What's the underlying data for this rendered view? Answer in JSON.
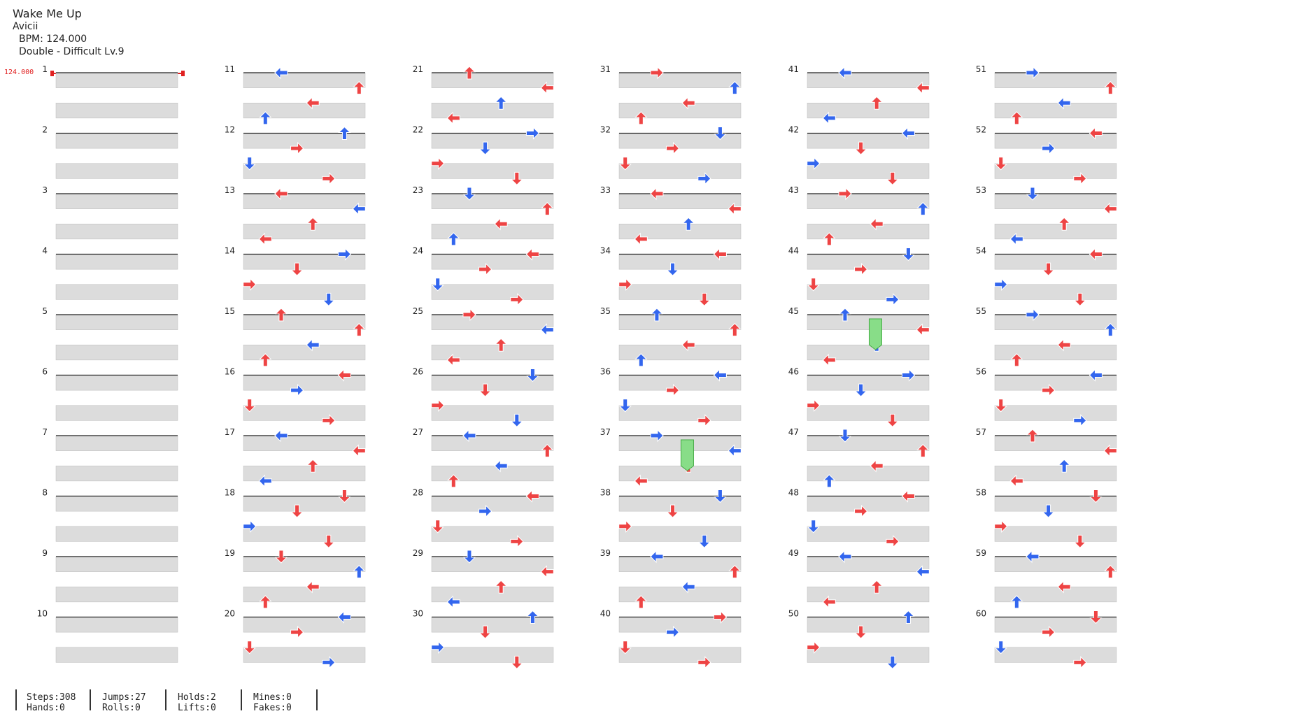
{
  "song": {
    "title": "Wake Me Up",
    "artist": "Avicii",
    "bpm_label": "BPM: 124.000",
    "difficulty_label": "Double - Difficult  Lv.9",
    "bpm_marker": "124.000"
  },
  "measures": [
    "1",
    "2",
    "3",
    "4",
    "5",
    "6",
    "7",
    "8",
    "9",
    "10",
    "11",
    "12",
    "13",
    "14",
    "15",
    "16",
    "17",
    "18",
    "19",
    "20",
    "21",
    "22",
    "23",
    "24",
    "25",
    "26",
    "27",
    "28",
    "29",
    "30",
    "31",
    "32",
    "33",
    "34",
    "35",
    "36",
    "37",
    "38",
    "39",
    "40",
    "41",
    "42",
    "43",
    "44",
    "45",
    "46",
    "47",
    "48",
    "49",
    "50",
    "51",
    "52",
    "53",
    "54",
    "55",
    "56",
    "57",
    "58",
    "59",
    "60"
  ],
  "colors": {
    "red_arrow": "#ee4444",
    "blue_arrow": "#3366ee",
    "hold": "#88dd88",
    "lane_fill": "#dcdcdc",
    "bpm": "#e02020"
  },
  "notes": [
    [
      10,
      0,
      "L",
      0
    ],
    [
      11,
      0,
      "U",
      1
    ],
    [
      12,
      0,
      "L",
      0
    ],
    [
      13,
      0,
      "R",
      0
    ],
    [
      14,
      0,
      "U",
      0
    ],
    [
      15,
      0,
      "L",
      0
    ],
    [
      16,
      0,
      "L",
      0
    ],
    [
      17,
      0,
      "D",
      0
    ],
    [
      18,
      0,
      "D",
      0
    ],
    [
      19,
      0,
      "L",
      0
    ],
    [
      20,
      0,
      "U",
      0
    ],
    [
      21,
      0,
      "R",
      1
    ],
    [
      22,
      0,
      "D",
      0
    ],
    [
      23,
      0,
      "L",
      0
    ],
    [
      24,
      0,
      "R",
      0
    ],
    [
      25,
      0,
      "D",
      1
    ],
    [
      26,
      0,
      "L",
      1
    ],
    [
      27,
      0,
      "L",
      0
    ],
    [
      28,
      0,
      "D",
      0
    ],
    [
      29,
      0,
      "U",
      1
    ],
    [
      30,
      0,
      "R",
      0
    ],
    [
      31,
      0,
      "D",
      1
    ],
    [
      32,
      0,
      "L",
      0
    ],
    [
      33,
      0,
      "L",
      0
    ],
    [
      34,
      0,
      "U",
      1
    ],
    [
      35,
      0,
      "L",
      1
    ],
    [
      36,
      0,
      "R",
      1
    ],
    [
      37,
      0,
      "D",
      0
    ],
    [
      38,
      0,
      "L",
      1
    ],
    [
      39,
      0,
      "R",
      0
    ],
    [
      40,
      0,
      "L",
      0
    ],
    [
      41,
      0,
      "L",
      1
    ],
    [
      42,
      0,
      "R",
      0
    ],
    [
      43,
      0,
      "D",
      0
    ],
    [
      44,
      0,
      "U",
      1
    ],
    [
      45,
      0,
      "R",
      1
    ],
    [
      46,
      0,
      "D",
      0
    ],
    [
      47,
      0,
      "L",
      0
    ],
    [
      48,
      0,
      "L",
      1
    ],
    [
      49,
      0,
      "U",
      0
    ],
    [
      50,
      0,
      "R",
      1
    ],
    [
      51,
      0,
      "L",
      0
    ],
    [
      52,
      0,
      "D",
      0
    ],
    [
      53,
      0,
      "L",
      0
    ],
    [
      54,
      0,
      "R",
      1
    ],
    [
      55,
      0,
      "L",
      1
    ],
    [
      56,
      0,
      "U",
      0
    ],
    [
      57,
      0,
      "D",
      0
    ],
    [
      58,
      0,
      "L",
      0
    ],
    [
      59,
      0,
      "D",
      0
    ]
  ],
  "holds": [
    {
      "measure": 37,
      "label": "hold"
    },
    {
      "measure": 45,
      "label": "hold"
    }
  ],
  "stats": {
    "steps": "Steps:308",
    "hands": "Hands:0",
    "jumps": "Jumps:27",
    "rolls": "Rolls:0",
    "holds": "Holds:2",
    "lifts": "Lifts:0",
    "mines": "Mines:0",
    "fakes": "Fakes:0"
  }
}
